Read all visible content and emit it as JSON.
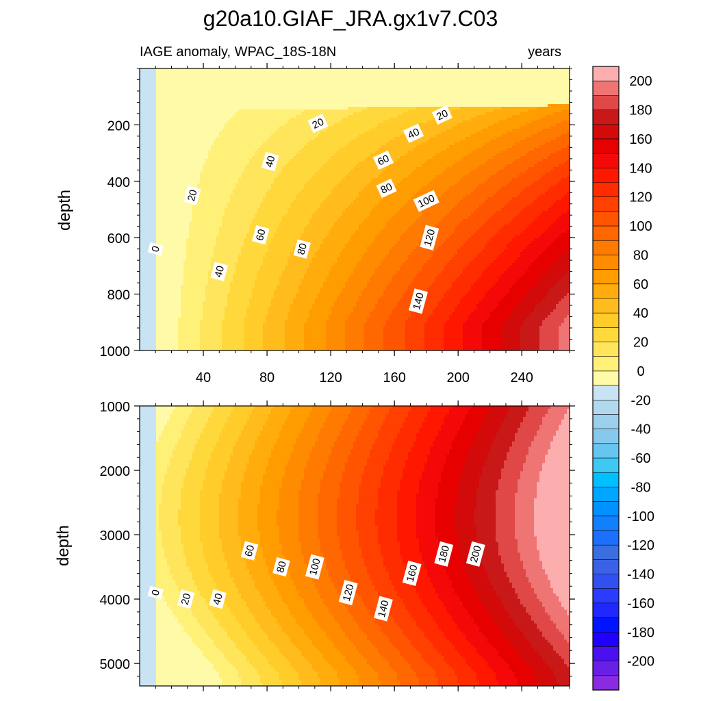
{
  "title": "g20a10.GIAF_JRA.gx1v7.C03",
  "chart_data": {
    "type": "heatmap",
    "subtitle_left": "IAGE anomaly, WPAC_18S-18N",
    "subtitle_right": "years",
    "xlabel": "",
    "xlim": [
      0,
      270
    ],
    "xticks": [
      40,
      80,
      120,
      160,
      200,
      240
    ],
    "colorbar": {
      "levels": [
        -210,
        -200,
        -190,
        -180,
        -170,
        -160,
        -150,
        -140,
        -130,
        -120,
        -110,
        -100,
        -90,
        -80,
        -70,
        -60,
        -50,
        -40,
        -30,
        -20,
        -10,
        0,
        10,
        20,
        30,
        40,
        50,
        60,
        70,
        80,
        90,
        100,
        110,
        120,
        130,
        140,
        150,
        160,
        170,
        180,
        190,
        200,
        210
      ],
      "labels": [
        "200",
        "180",
        "160",
        "140",
        "120",
        "100",
        "80",
        "60",
        "40",
        "20",
        "0",
        "-20",
        "-40",
        "-60",
        "-80",
        "-100",
        "-120",
        "-140",
        "-160",
        "-180",
        "-200"
      ],
      "colors": [
        "#8a2be2",
        "#6a1fe6",
        "#4b0ff0",
        "#1f00ff",
        "#0014ff",
        "#1e28ff",
        "#2a3cff",
        "#3050f0",
        "#3a62e6",
        "#3b6fe0",
        "#1c70ff",
        "#1080ff",
        "#0090ff",
        "#00a6ff",
        "#00c0ff",
        "#3ec8f4",
        "#66c6f0",
        "#86c8ee",
        "#9ccfec",
        "#b2d8ee",
        "#c8e4f4",
        "#fffaa8",
        "#fff078",
        "#ffe55c",
        "#ffd83c",
        "#ffcc2a",
        "#ffbc1c",
        "#ffac0c",
        "#ff9c00",
        "#ff8c00",
        "#ff7a00",
        "#ff6800",
        "#ff5400",
        "#ff4000",
        "#ff2c00",
        "#ff1800",
        "#f50808",
        "#e60000",
        "#d20a0a",
        "#c81818",
        "#e04848",
        "#ef7474",
        "#fcaeae"
      ]
    },
    "panels": [
      {
        "name": "upper",
        "ylabel": "depth",
        "ylim": [
          0,
          1000
        ],
        "yticks": [
          "200",
          "400",
          "600",
          "800",
          "1000"
        ],
        "contour_labels": [
          {
            "text": "0",
            "x": 10,
            "y": 640
          },
          {
            "text": "20",
            "x": 33,
            "y": 450
          },
          {
            "text": "40",
            "x": 50,
            "y": 720
          },
          {
            "text": "60",
            "x": 76,
            "y": 590
          },
          {
            "text": "80",
            "x": 102,
            "y": 640
          },
          {
            "text": "20",
            "x": 112,
            "y": 195
          },
          {
            "text": "40",
            "x": 82,
            "y": 330
          },
          {
            "text": "60",
            "x": 153,
            "y": 325
          },
          {
            "text": "80",
            "x": 155,
            "y": 425
          },
          {
            "text": "100",
            "x": 180,
            "y": 470
          },
          {
            "text": "120",
            "x": 182,
            "y": 600
          },
          {
            "text": "140",
            "x": 175,
            "y": 825
          },
          {
            "text": "40",
            "x": 172,
            "y": 230
          },
          {
            "text": "20",
            "x": 190,
            "y": 165
          }
        ]
      },
      {
        "name": "lower",
        "ylabel": "depth",
        "ylim": [
          1000,
          5350
        ],
        "yticks": [
          "1000",
          "2000",
          "3000",
          "4000",
          "5000"
        ],
        "contour_labels": [
          {
            "text": "0",
            "x": 10,
            "y": 3900
          },
          {
            "text": "20",
            "x": 29,
            "y": 4000
          },
          {
            "text": "40",
            "x": 49,
            "y": 4000
          },
          {
            "text": "60",
            "x": 69,
            "y": 3250
          },
          {
            "text": "80",
            "x": 89,
            "y": 3500
          },
          {
            "text": "100",
            "x": 110,
            "y": 3500
          },
          {
            "text": "120",
            "x": 131,
            "y": 3900
          },
          {
            "text": "140",
            "x": 153,
            "y": 4150
          },
          {
            "text": "160",
            "x": 171,
            "y": 3600
          },
          {
            "text": "180",
            "x": 191,
            "y": 3300
          },
          {
            "text": "200",
            "x": 211,
            "y": 3300
          }
        ]
      }
    ]
  }
}
